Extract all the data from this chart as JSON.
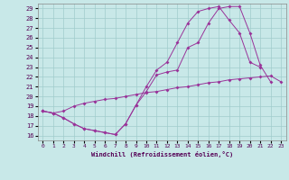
{
  "xlabel": "Windchill (Refroidissement éolien,°C)",
  "xlim": [
    -0.5,
    23.5
  ],
  "ylim": [
    15.5,
    29.5
  ],
  "xticks": [
    0,
    1,
    2,
    3,
    4,
    5,
    6,
    7,
    8,
    9,
    10,
    11,
    12,
    13,
    14,
    15,
    16,
    17,
    18,
    19,
    20,
    21,
    22,
    23
  ],
  "yticks": [
    16,
    17,
    18,
    19,
    20,
    21,
    22,
    23,
    24,
    25,
    26,
    27,
    28,
    29
  ],
  "bg_color": "#c8e8e8",
  "line_color": "#993399",
  "grid_color": "#a0cccc",
  "line1_x": [
    0,
    1,
    2,
    3,
    4,
    5,
    6,
    7,
    8,
    9,
    10,
    11,
    12,
    13,
    14,
    15,
    16,
    17,
    18,
    19,
    20,
    21,
    22
  ],
  "line1_y": [
    18.5,
    18.3,
    17.8,
    17.2,
    16.7,
    16.5,
    16.3,
    16.1,
    17.2,
    19.1,
    20.5,
    22.2,
    22.5,
    22.7,
    25.0,
    25.5,
    27.5,
    29.0,
    29.2,
    29.2,
    26.5,
    23.2,
    21.5
  ],
  "line2_x": [
    0,
    1,
    2,
    3,
    4,
    5,
    6,
    7,
    8,
    9,
    10,
    11,
    12,
    13,
    14,
    15,
    16,
    17,
    18,
    19,
    20,
    21
  ],
  "line2_y": [
    18.5,
    18.3,
    17.8,
    17.2,
    16.7,
    16.5,
    16.3,
    16.1,
    17.2,
    19.1,
    21.0,
    22.7,
    23.5,
    25.5,
    27.5,
    28.7,
    29.0,
    29.2,
    27.8,
    26.5,
    23.5,
    23.0
  ],
  "line3_x": [
    0,
    1,
    2,
    3,
    4,
    5,
    6,
    7,
    8,
    9,
    10,
    11,
    12,
    13,
    14,
    15,
    16,
    17,
    18,
    19,
    20,
    21,
    22,
    23
  ],
  "line3_y": [
    18.5,
    18.3,
    18.5,
    19.0,
    19.3,
    19.5,
    19.7,
    19.8,
    20.0,
    20.2,
    20.4,
    20.5,
    20.7,
    20.9,
    21.0,
    21.2,
    21.4,
    21.5,
    21.7,
    21.8,
    21.9,
    22.0,
    22.1,
    21.5
  ]
}
